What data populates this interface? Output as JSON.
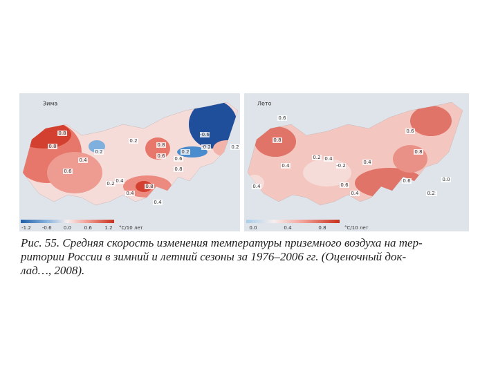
{
  "winter": {
    "title": "Зима",
    "labels": [
      "0.8",
      "0.8",
      "0.4",
      "0.6",
      "0.2",
      "0.2",
      "0.4",
      "0.8",
      "0.6",
      "0.8",
      "0.4",
      "0.6",
      "0.2",
      "0.8",
      "0.4",
      "-0.6",
      "-0.2",
      "0.2",
      "0.2"
    ],
    "scale_ticks": [
      "-1.2",
      "-0.6",
      "0.0",
      "0.6",
      "1.2"
    ],
    "unit": "°C/10 лет"
  },
  "summer": {
    "title": "Лето",
    "labels": [
      "0.6",
      "0.8",
      "0.4",
      "0.4",
      "0.2",
      "0.4",
      "-0.2",
      "0.4",
      "0.6",
      "0.4",
      "0.6",
      "0.8",
      "0.2",
      "0.0",
      "0.2",
      "0.6"
    ],
    "scale_ticks": [
      "0.0",
      "0.4",
      "0.8"
    ],
    "unit": "°C/10 лет"
  },
  "caption": {
    "lines": [
      "Рис. 55. Средняя скорость изменения температуры приземного воздуха на тер-",
      "ритории России в зимний и летний сезоны за 1976–2006 гг. (Оценочный док-",
      "лад…, 2008)."
    ]
  }
}
